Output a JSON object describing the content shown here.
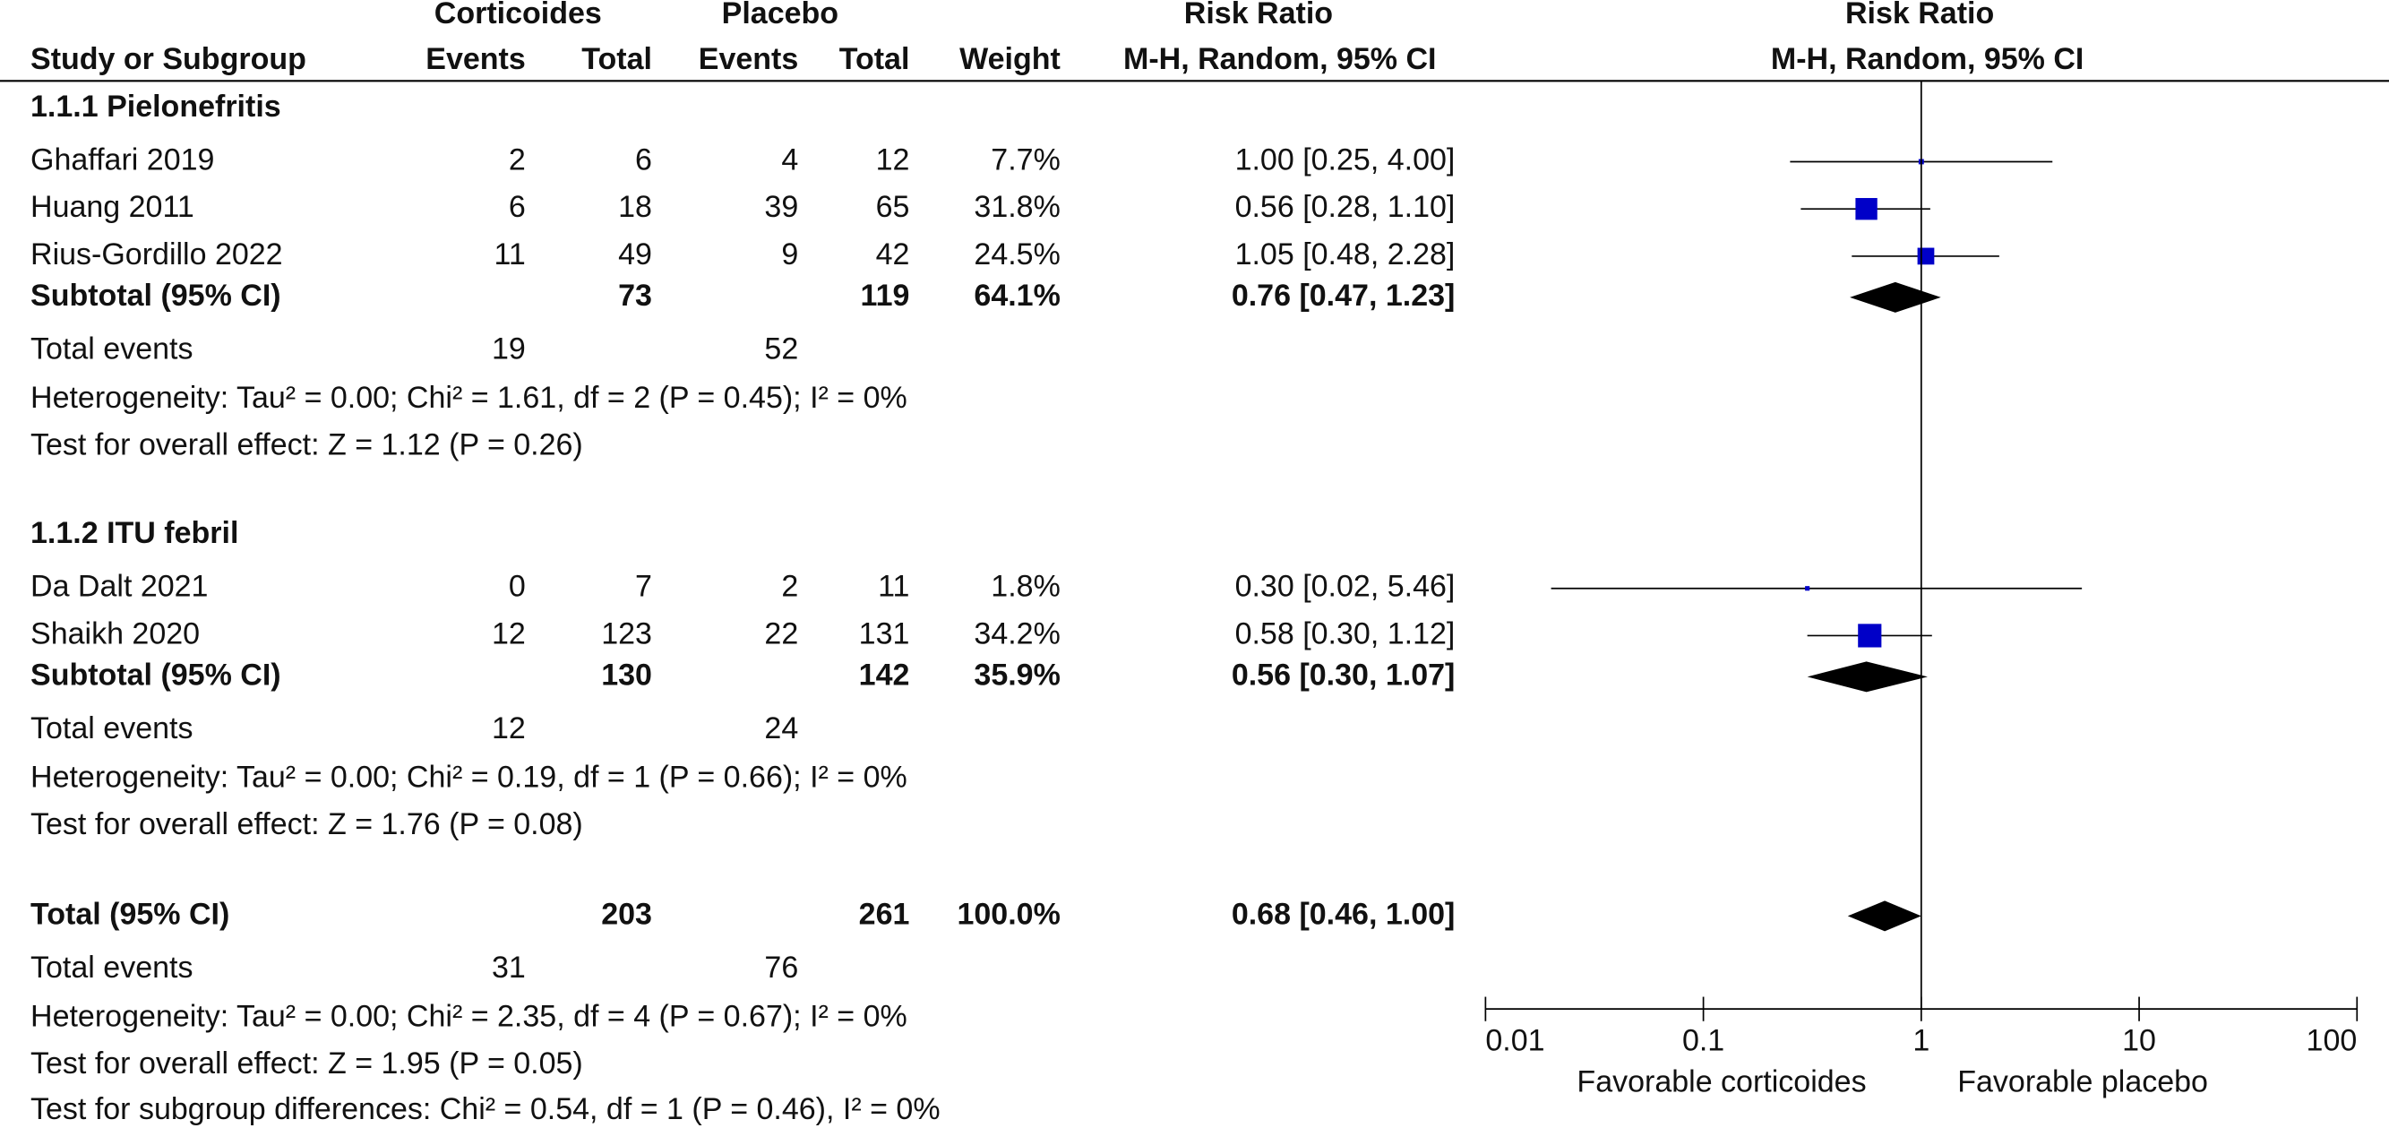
{
  "chart_data": {
    "type": "forest",
    "header": {
      "group1": "Corticoides",
      "group2": "Placebo",
      "effect": "Risk Ratio",
      "plot_title": "Risk Ratio",
      "columns": [
        "Study or Subgroup",
        "Events",
        "Total",
        "Events",
        "Total",
        "Weight",
        "M-H, Random, 95% CI"
      ],
      "plot_method": "M-H, Random, 95% CI"
    },
    "subgroups": [
      {
        "title": "1.1.1 Pielonefritis",
        "studies": [
          {
            "name": "Ghaffari 2019",
            "events1": 2,
            "total1": 6,
            "events2": 4,
            "total2": 12,
            "weight": 7.7,
            "weight_label": "7.7%",
            "rr": 1.0,
            "ci": [
              0.25,
              4.0
            ],
            "ci_label": "1.00 [0.25, 4.00]"
          },
          {
            "name": "Huang 2011",
            "events1": 6,
            "total1": 18,
            "events2": 39,
            "total2": 65,
            "weight": 31.8,
            "weight_label": "31.8%",
            "rr": 0.56,
            "ci": [
              0.28,
              1.1
            ],
            "ci_label": "0.56 [0.28, 1.10]"
          },
          {
            "name": "Rius-Gordillo 2022",
            "events1": 11,
            "total1": 49,
            "events2": 9,
            "total2": 42,
            "weight": 24.5,
            "weight_label": "24.5%",
            "rr": 1.05,
            "ci": [
              0.48,
              2.28
            ],
            "ci_label": "1.05 [0.48, 2.28]"
          }
        ],
        "subtotal": {
          "name": "Subtotal (95% CI)",
          "total1": 73,
          "total2": 119,
          "weight": 64.1,
          "weight_label": "64.1%",
          "rr": 0.76,
          "ci": [
            0.47,
            1.23
          ],
          "ci_label": "0.76 [0.47, 1.23]"
        },
        "total_events": {
          "name": "Total events",
          "events1": 19,
          "events2": 52
        },
        "heterogeneity": "Heterogeneity: Tau² = 0.00; Chi² = 1.61, df = 2 (P = 0.45); I² = 0%",
        "overall_effect": "Test for overall effect: Z = 1.12 (P = 0.26)"
      },
      {
        "title": "1.1.2 ITU febril",
        "studies": [
          {
            "name": "Da Dalt 2021",
            "events1": 0,
            "total1": 7,
            "events2": 2,
            "total2": 11,
            "weight": 1.8,
            "weight_label": "1.8%",
            "rr": 0.3,
            "ci": [
              0.02,
              5.46
            ],
            "ci_label": "0.30 [0.02, 5.46]"
          },
          {
            "name": "Shaikh 2020",
            "events1": 12,
            "total1": 123,
            "events2": 22,
            "total2": 131,
            "weight": 34.2,
            "weight_label": "34.2%",
            "rr": 0.58,
            "ci": [
              0.3,
              1.12
            ],
            "ci_label": "0.58 [0.30, 1.12]"
          }
        ],
        "subtotal": {
          "name": "Subtotal (95% CI)",
          "total1": 130,
          "total2": 142,
          "weight": 35.9,
          "weight_label": "35.9%",
          "rr": 0.56,
          "ci": [
            0.3,
            1.07
          ],
          "ci_label": "0.56 [0.30, 1.07]"
        },
        "total_events": {
          "name": "Total events",
          "events1": 12,
          "events2": 24
        },
        "heterogeneity": "Heterogeneity: Tau² = 0.00; Chi² = 0.19, df = 1 (P = 0.66); I² = 0%",
        "overall_effect": "Test for overall effect: Z = 1.76 (P = 0.08)"
      }
    ],
    "total": {
      "subtotal": {
        "name": "Total (95% CI)",
        "total1": 203,
        "total2": 261,
        "weight": 100.0,
        "weight_label": "100.0%",
        "rr": 0.68,
        "ci": [
          0.46,
          1.0
        ],
        "ci_label": "0.68 [0.46, 1.00]"
      },
      "total_events": {
        "name": "Total events",
        "events1": 31,
        "events2": 76
      },
      "heterogeneity": "Heterogeneity: Tau² = 0.00; Chi² = 2.35, df = 4 (P = 0.67); I² = 0%",
      "overall_effect": "Test for overall effect: Z = 1.95 (P = 0.05)"
    },
    "subgroup_differences": "Test for subgroup differences: Chi² = 0.54, df = 1 (P = 0.46), I² = 0%",
    "xlim": [
      0.01,
      100
    ],
    "xscale": "log",
    "xticks": [
      0.01,
      0.1,
      1,
      10,
      100
    ],
    "xlabel_left": "Favorable corticoides",
    "xlabel_right": "Favorable placebo",
    "marker_color": "#0000c8",
    "diamond_color": "#000000"
  }
}
